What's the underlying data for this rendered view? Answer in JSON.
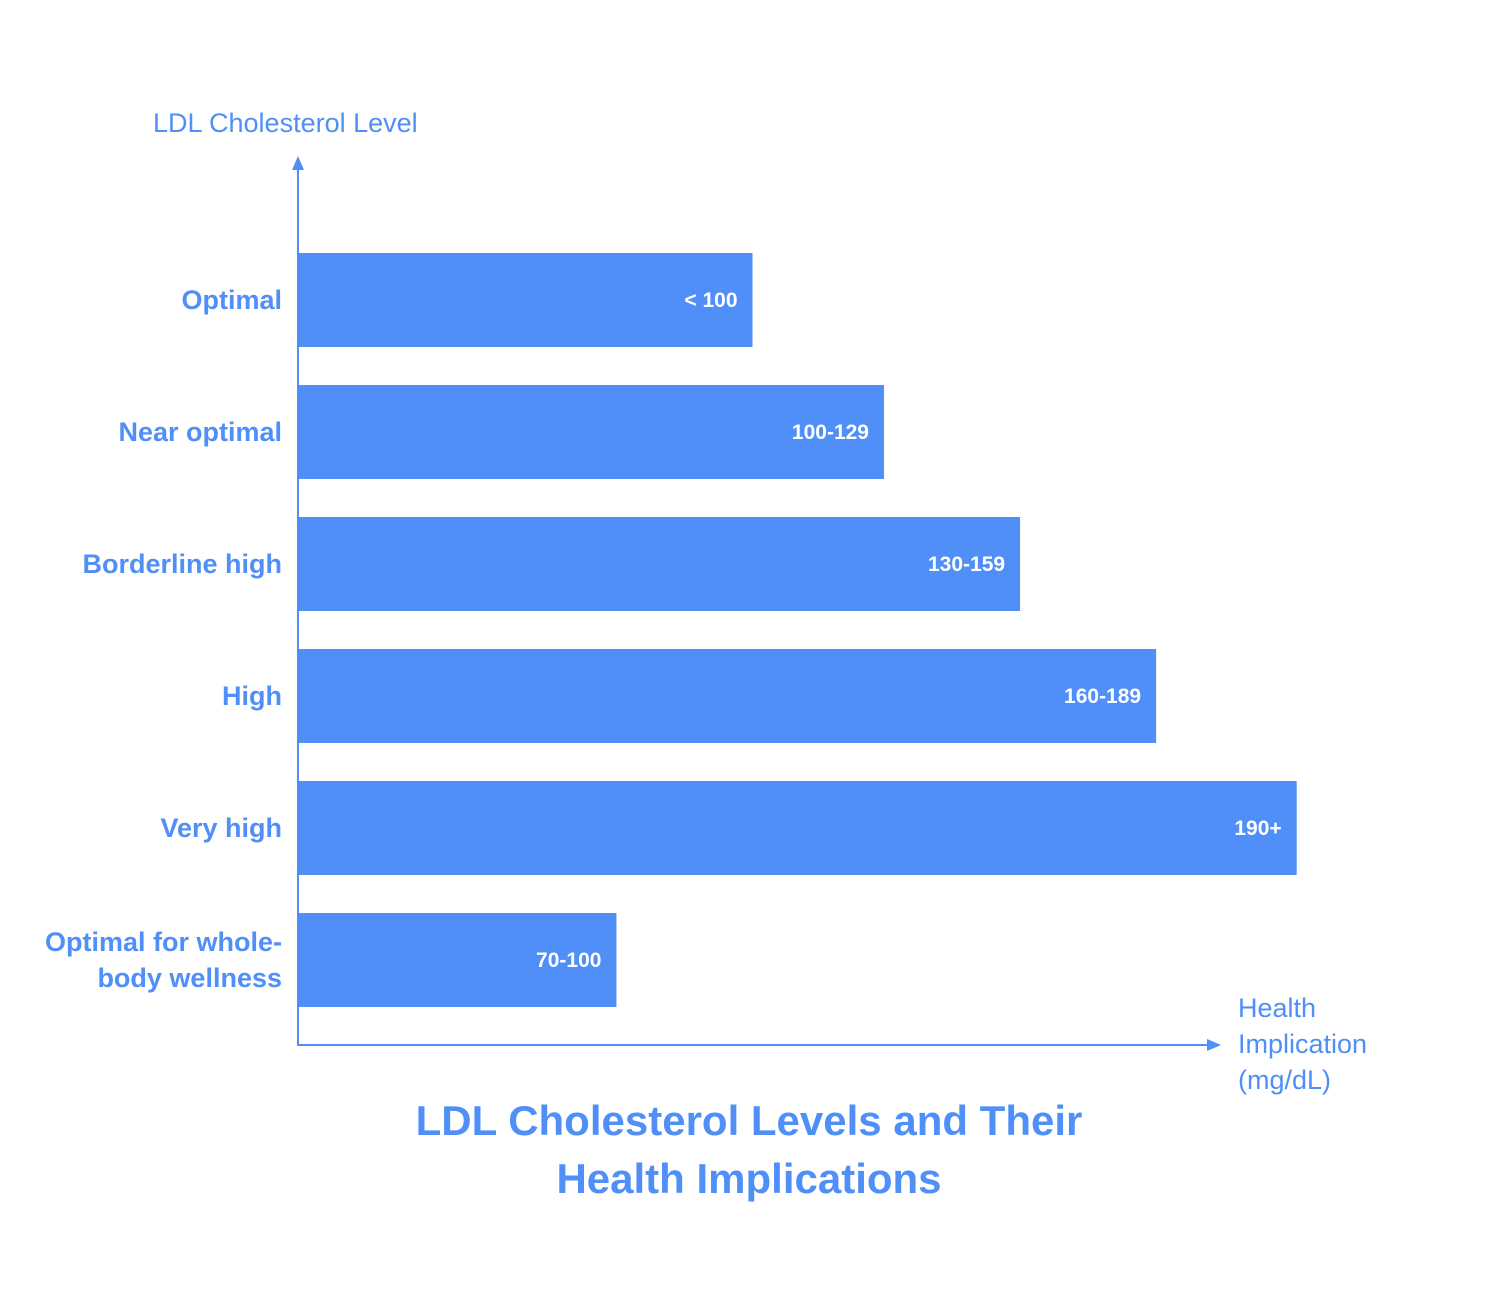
{
  "chart_data": {
    "type": "bar",
    "orientation": "horizontal",
    "title": "LDL Cholesterol Levels and Their Health Implications",
    "ylabel": "LDL Cholesterol Level",
    "xlabel": "Health Implication (mg/dL)",
    "categories": [
      "Optimal",
      "Near optimal",
      "Borderline high",
      "High",
      "Very high",
      "Optimal for whole-body wellness"
    ],
    "values": [
      100,
      129,
      159,
      189,
      220,
      70
    ],
    "value_labels": [
      "< 100",
      "100-129",
      "130-159",
      "160-189",
      "190+",
      "70-100"
    ],
    "color": "#4f8ff7",
    "grid": false,
    "legend": false
  }
}
